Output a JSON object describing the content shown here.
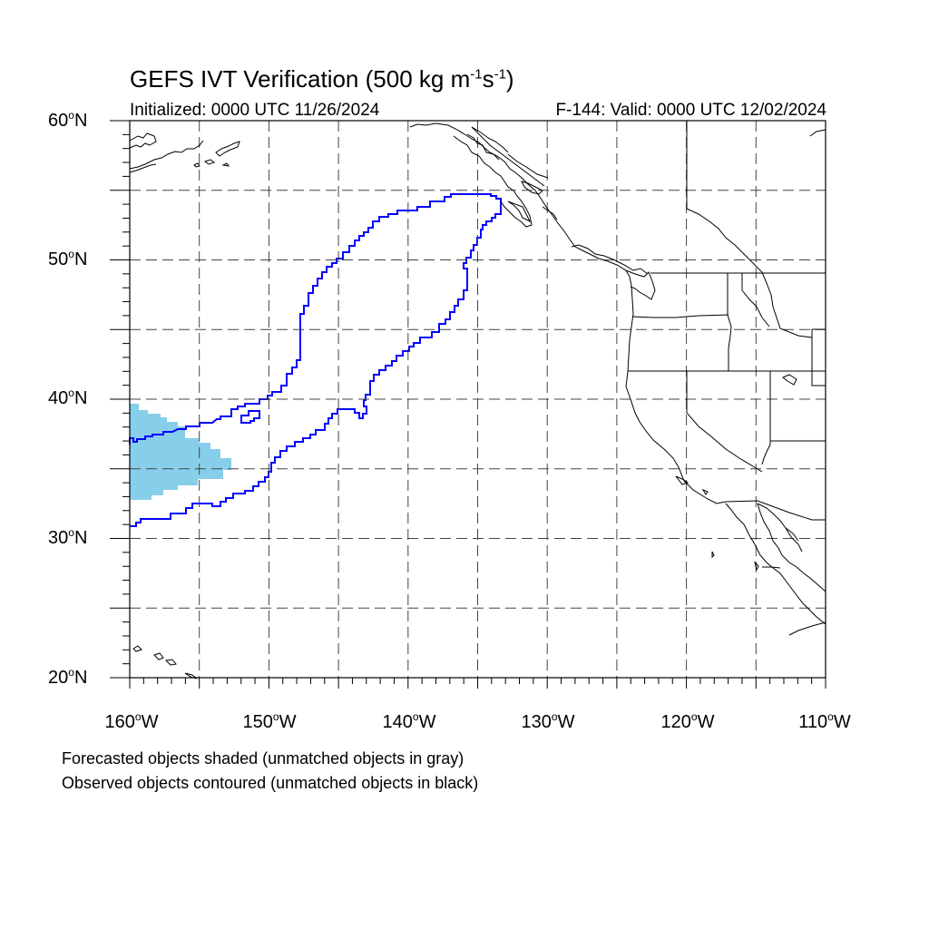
{
  "title": {
    "prefix": "GEFS IVT Verification (500 kg m",
    "exp1": "-1",
    "mid": "s",
    "exp2": "-1",
    "suffix": ")"
  },
  "initialized": "Initialized: 0000 UTC 11/26/2024",
  "valid": "F-144: Valid: 0000 UTC 12/02/2024",
  "lat_labels": [
    {
      "value": "60",
      "hemi": "N"
    },
    {
      "value": "50",
      "hemi": "N"
    },
    {
      "value": "40",
      "hemi": "N"
    },
    {
      "value": "30",
      "hemi": "N"
    },
    {
      "value": "20",
      "hemi": "N"
    }
  ],
  "lon_labels": [
    {
      "value": "160",
      "hemi": "W"
    },
    {
      "value": "150",
      "hemi": "W"
    },
    {
      "value": "140",
      "hemi": "W"
    },
    {
      "value": "130",
      "hemi": "W"
    },
    {
      "value": "120",
      "hemi": "W"
    },
    {
      "value": "110",
      "hemi": "W"
    }
  ],
  "degree_symbol": "o",
  "footnotes": {
    "forecast": "Forecasted objects shaded (unmatched objects in gray)",
    "observed": "Observed objects contoured (unmatched objects in black)"
  },
  "colors": {
    "forecast_fill": "#87ceeb",
    "observed_contour": "#0000ff",
    "coastline": "#000000",
    "grid": "#444444"
  }
}
